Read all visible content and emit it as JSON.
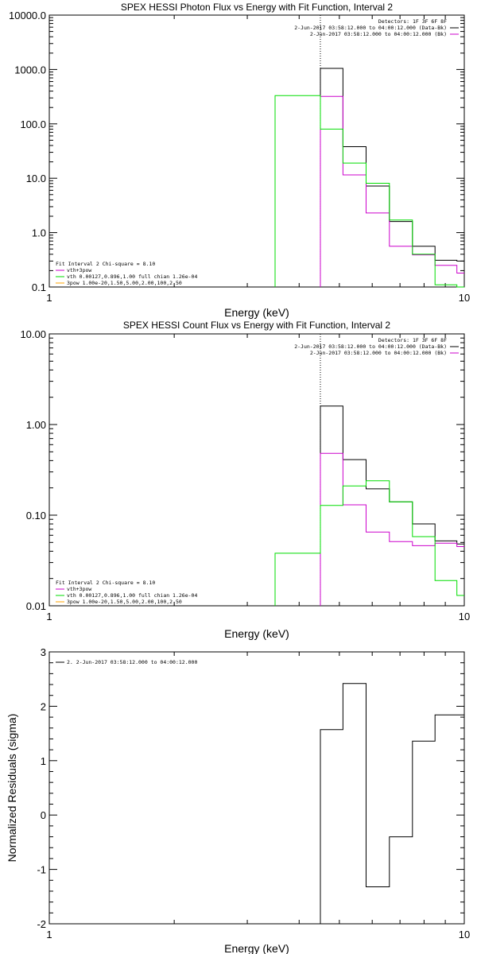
{
  "colors": {
    "black": "#000000",
    "magenta": "#cc00cc",
    "green": "#00dd00"
  },
  "chart_data": [
    {
      "type": "line",
      "title": "SPEX HESSI Photon Flux vs Energy with Fit Function, Interval 2",
      "xlabel": "Energy (keV)",
      "ylabel": "",
      "xscale": "log",
      "yscale": "log",
      "xlim": [
        1,
        10
      ],
      "ylim": [
        0.1,
        10000
      ],
      "x_tick_labels": [
        {
          "v": 1,
          "t": "1"
        },
        {
          "v": 10,
          "t": "10"
        }
      ],
      "y_tick_labels": [
        {
          "v": 0.1,
          "t": "0.1"
        },
        {
          "v": 1,
          "t": "1.0"
        },
        {
          "v": 10,
          "t": "10.0"
        },
        {
          "v": 100,
          "t": "100.0"
        },
        {
          "v": 1000,
          "t": "1000.0"
        },
        {
          "v": 10000,
          "t": "10000.0"
        }
      ],
      "vline_x": 4.5,
      "legend_top_right": [
        {
          "text": "Detectors: 1F 3F 6F 8F",
          "color": "black",
          "marker": false
        },
        {
          "text": "2-Jun-2017 03:58:12.000 to 04:00:12.000 (Data-Bk)",
          "color": "black",
          "marker": true
        },
        {
          "text": "2-Jun-2017 03:58:12.000 to 04:00:12.000 (Bk)",
          "color": "magenta",
          "marker": true
        }
      ],
      "legend_bottom_left": [
        {
          "text": "Fit Interval 2   Chi-square = 8.10",
          "color": "black",
          "marker": false
        },
        {
          "text": "vth+3pow",
          "color": "magenta",
          "marker": true
        },
        {
          "text": "vth 0.00127,0.896,1.00   full chian 1.26e-04",
          "color": "green",
          "marker": true
        },
        {
          "text": "3pow 1.00e-20,1.50,5.00,2.00,100,2.50",
          "color": "orange",
          "marker": true
        }
      ],
      "series": [
        {
          "color": "black",
          "edges": [
            4.5,
            5.1,
            5.8,
            6.6,
            7.5,
            8.5,
            9.6,
            10
          ],
          "values": [
            1050,
            38,
            7.2,
            1.6,
            0.56,
            0.31,
            0.3
          ]
        },
        {
          "color": "magenta",
          "edges": [
            4.5,
            5.1,
            5.8,
            6.6,
            7.5,
            8.5,
            9.6,
            10
          ],
          "values": [
            320,
            11.5,
            2.3,
            0.56,
            0.39,
            0.25,
            0.18
          ]
        },
        {
          "color": "green",
          "edges": [
            3.5,
            4.5,
            5.1,
            5.8,
            6.6,
            7.5,
            8.5,
            9.6,
            10
          ],
          "values": [
            330,
            80,
            19,
            8.1,
            1.7,
            0.4,
            0.11,
            0.09
          ]
        }
      ]
    },
    {
      "type": "line",
      "title": "SPEX HESSI Count Flux vs Energy with Fit Function, Interval 2",
      "xlabel": "Energy (keV)",
      "ylabel": "",
      "xscale": "log",
      "yscale": "log",
      "xlim": [
        1,
        10
      ],
      "ylim": [
        0.01,
        10
      ],
      "x_tick_labels": [
        {
          "v": 1,
          "t": "1"
        },
        {
          "v": 10,
          "t": "10"
        }
      ],
      "y_tick_labels": [
        {
          "v": 0.01,
          "t": "0.01"
        },
        {
          "v": 0.1,
          "t": "0.10"
        },
        {
          "v": 1,
          "t": "1.00"
        },
        {
          "v": 10,
          "t": "10.00"
        }
      ],
      "vline_x": 4.5,
      "legend_top_right": [
        {
          "text": "Detectors: 1F 3F 6F 8F",
          "color": "black",
          "marker": false
        },
        {
          "text": "2-Jun-2017 03:58:12.000 to 04:00:12.000 (Data-Bk)",
          "color": "black",
          "marker": true
        },
        {
          "text": "2-Jun-2017 03:58:12.000 to 04:00:12.000 (Bk)",
          "color": "magenta",
          "marker": true
        }
      ],
      "legend_bottom_left": [
        {
          "text": "Fit Interval 2   Chi-square = 8.10",
          "color": "black",
          "marker": false
        },
        {
          "text": "vth+3pow",
          "color": "magenta",
          "marker": true
        },
        {
          "text": "vth 0.00127,0.896,1.00   full chian 1.26e-04",
          "color": "green",
          "marker": true
        },
        {
          "text": "3pow 1.00e-20,1.50,5.00,2.00,100,2.50",
          "color": "orange",
          "marker": true
        }
      ],
      "series": [
        {
          "color": "black",
          "edges": [
            4.5,
            5.1,
            5.8,
            6.6,
            7.5,
            8.5,
            9.6,
            10
          ],
          "values": [
            1.6,
            0.41,
            0.195,
            0.14,
            0.08,
            0.052,
            0.048
          ]
        },
        {
          "color": "magenta",
          "edges": [
            4.5,
            5.1,
            5.8,
            6.6,
            7.5,
            8.5,
            9.6,
            10
          ],
          "values": [
            0.48,
            0.13,
            0.065,
            0.051,
            0.046,
            0.049,
            0.045
          ]
        },
        {
          "color": "green",
          "edges": [
            3.5,
            4.5,
            5.1,
            5.8,
            6.6,
            7.5,
            8.5,
            9.6,
            10
          ],
          "values": [
            0.038,
            0.128,
            0.21,
            0.24,
            0.14,
            0.058,
            0.019,
            0.013
          ]
        }
      ]
    },
    {
      "type": "line",
      "title": "",
      "xlabel": "Energy (keV)",
      "ylabel": "Normalized Residuals (sigma)",
      "xscale": "log",
      "yscale": "linear",
      "xlim": [
        1,
        10
      ],
      "ylim": [
        -2,
        3
      ],
      "x_tick_labels": [
        {
          "v": 1,
          "t": "1"
        },
        {
          "v": 10,
          "t": "10"
        }
      ],
      "y_tick_labels": [
        {
          "v": -2,
          "t": "-2"
        },
        {
          "v": -1,
          "t": "-1"
        },
        {
          "v": 0,
          "t": "0"
        },
        {
          "v": 1,
          "t": "1"
        },
        {
          "v": 2,
          "t": "2"
        },
        {
          "v": 3,
          "t": "3"
        }
      ],
      "legend_top_left": [
        {
          "text": "2. 2-Jun-2017 03:58:12.000 to 04:00:12.000",
          "color": "black",
          "marker": true
        }
      ],
      "series": [
        {
          "color": "black",
          "edges": [
            4.5,
            5.1,
            5.8,
            6.6,
            7.5,
            8.5,
            9.6,
            10
          ],
          "values": [
            1.57,
            2.42,
            -1.32,
            -0.4,
            1.36,
            1.84,
            1.84
          ]
        }
      ]
    }
  ]
}
